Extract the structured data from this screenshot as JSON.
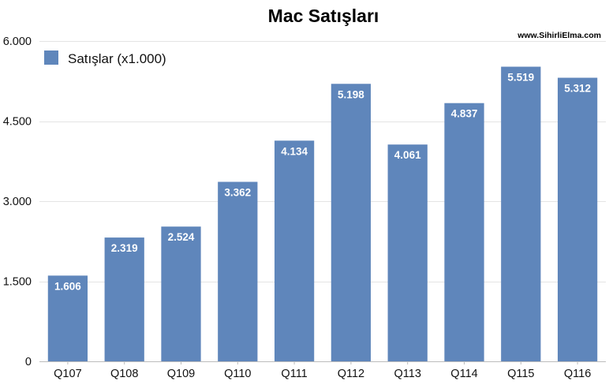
{
  "chart_data": {
    "type": "bar",
    "title": "Mac Satışları",
    "source": "www.SihirliElma.com",
    "categories": [
      "Q107",
      "Q108",
      "Q109",
      "Q110",
      "Q111",
      "Q112",
      "Q113",
      "Q114",
      "Q115",
      "Q116"
    ],
    "series": [
      {
        "name": "Satışlar (x1.000)",
        "values": [
          1606,
          2319,
          2524,
          3362,
          4134,
          5198,
          4061,
          4837,
          5519,
          5312
        ],
        "value_labels": [
          "1.606",
          "2.319",
          "2.524",
          "3.362",
          "4.134",
          "5.198",
          "4.061",
          "4.837",
          "5.519",
          "5.312"
        ],
        "color": "#5f86bb"
      }
    ],
    "ylim": [
      0,
      6000
    ],
    "y_ticks": [
      0,
      1500,
      3000,
      4500,
      6000
    ],
    "y_tick_labels": [
      "0",
      "1.500",
      "3.000",
      "4.500",
      "6.000"
    ],
    "grid": true,
    "legend_position": "top-left"
  }
}
